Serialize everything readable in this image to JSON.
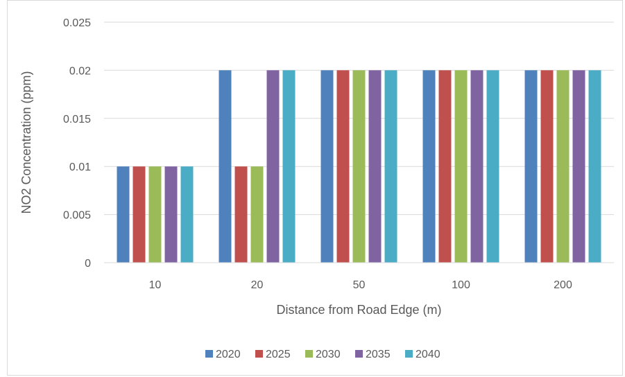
{
  "chart_data": {
    "type": "bar",
    "title": "",
    "xlabel": "Distance from Road Edge (m)",
    "ylabel": "NO2 Concentration (ppm)",
    "categories": [
      "10",
      "20",
      "50",
      "100",
      "200"
    ],
    "ylim": [
      0,
      0.025
    ],
    "yticks": [
      "0",
      "0.005",
      "0.01",
      "0.015",
      "0.02",
      "0.025"
    ],
    "grid": true,
    "legend_position": "bottom",
    "series": [
      {
        "name": "2020",
        "color": "#4f81bd",
        "values": [
          0.01,
          0.02,
          0.02,
          0.02,
          0.02
        ]
      },
      {
        "name": "2025",
        "color": "#c0504d",
        "values": [
          0.01,
          0.01,
          0.02,
          0.02,
          0.02
        ]
      },
      {
        "name": "2030",
        "color": "#9bbb59",
        "values": [
          0.01,
          0.01,
          0.02,
          0.02,
          0.02
        ]
      },
      {
        "name": "2035",
        "color": "#8064a2",
        "values": [
          0.01,
          0.02,
          0.02,
          0.02,
          0.02
        ]
      },
      {
        "name": "2040",
        "color": "#4bacc6",
        "values": [
          0.01,
          0.02,
          0.02,
          0.02,
          0.02
        ]
      }
    ]
  }
}
